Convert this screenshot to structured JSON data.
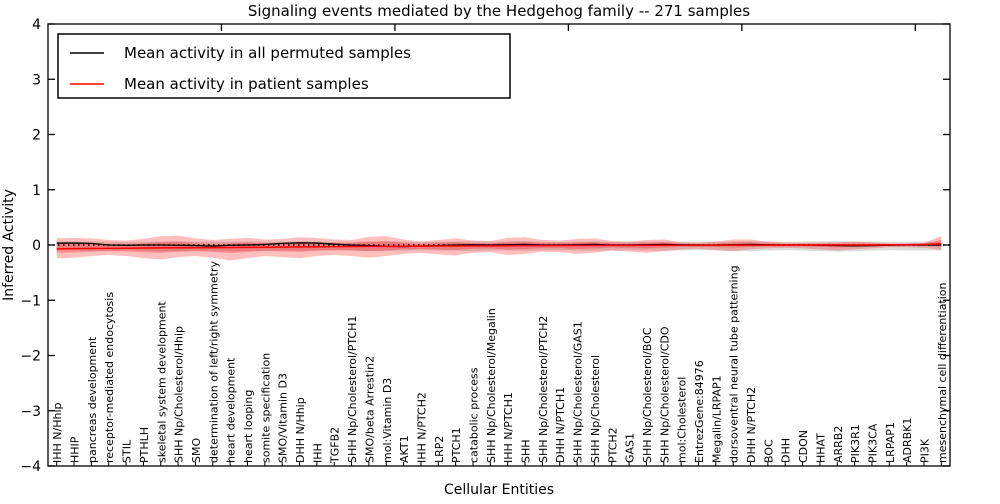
{
  "title": "Signaling events mediated by the Hedgehog family -- 271 samples",
  "xlabel": "Cellular Entities",
  "ylabel": "Inferred Activity",
  "legend": {
    "position": "upper left",
    "entries": [
      {
        "label": "Mean activity in all permuted samples",
        "color": "#000000"
      },
      {
        "label": "Mean activity in patient samples",
        "color": "#ff0000"
      }
    ]
  },
  "colors": {
    "permuted_line": "#000000",
    "patient_line": "#ff0000",
    "patient_band": "rgba(255,0,0,0.25)",
    "permuted_band": "rgba(128,128,128,0.28)",
    "zero_line": "#000000",
    "frame": "#000000",
    "background": "#ffffff"
  },
  "chart_data": {
    "type": "line",
    "title": "Signaling events mediated by the Hedgehog family -- 271 samples",
    "xlabel": "Cellular Entities",
    "ylabel": "Inferred Activity",
    "ylim": [
      -4,
      4
    ],
    "ytick_values": [
      4,
      3,
      2,
      1,
      0,
      -1,
      -2,
      -3,
      -4
    ],
    "ytick_labels": [
      "4",
      "3",
      "2",
      "1",
      "0",
      "−1",
      "−2",
      "−3",
      "−4"
    ],
    "grid": false,
    "legend_position": "upper left",
    "zero_line": {
      "style": "dotted",
      "color": "#000000",
      "y": 0
    },
    "categories": [
      "IHH N/Hhip",
      "HHIP",
      "pancreas development",
      "receptor-mediated endocytosis",
      "STIL",
      "PTHLH",
      "skeletal system development",
      "SHH Np/Cholesterol/Hhip",
      "SMO",
      "determination of left/right symmetry",
      "heart development",
      "heart looping",
      "somite specification",
      "SMO/Vitamin D3",
      "DHH N/Hhip",
      "IHH",
      "TGFB2",
      "SHH Np/Cholesterol/PTCH1",
      "SMO/beta Arrestin2",
      "mol:Vitamin D3",
      "AKT1",
      "IHH N/PTCH2",
      "LRP2",
      "PTCH1",
      "catabolic process",
      "SHH Np/Cholesterol/Megalin",
      "IHH N/PTCH1",
      "SHH",
      "SHH Np/Cholesterol/PTCH2",
      "DHH N/PTCH1",
      "SHH Np/Cholesterol/GAS1",
      "SHH Np/Cholesterol",
      "PTCH2",
      "GAS1",
      "SHH Np/Cholesterol/BOC",
      "SHH Np/Cholesterol/CDO",
      "mol:Cholesterol",
      "EntrezGene:84976",
      "Megalin/LRPAP1",
      "dorsoventral neural tube patterning",
      "DHH N/PTCH2",
      "BOC",
      "DHH",
      "CDON",
      "HHAT",
      "ARRB2",
      "PIK3R1",
      "PIK3CA",
      "LRPAP1",
      "ADRBK1",
      "PI3K",
      "mesenchymal cell differentiation"
    ],
    "series": [
      {
        "name": "Mean activity in all permuted samples",
        "color": "#000000",
        "values": [
          0.035,
          0.035,
          0.03,
          0.0,
          -0.005,
          0.0,
          0.0,
          -0.005,
          -0.01,
          -0.02,
          -0.005,
          0.0,
          0.01,
          0.03,
          0.04,
          0.035,
          0.015,
          0.0,
          -0.01,
          -0.025,
          -0.03,
          -0.02,
          -0.01,
          0.0,
          0.005,
          0.0,
          0.005,
          0.01,
          0.0,
          0.0,
          0.005,
          0.01,
          0.0,
          0.0,
          0.005,
          0.01,
          0.005,
          0.0,
          0.0,
          0.005,
          0.01,
          0.005,
          0.0,
          0.0,
          -0.005,
          -0.01,
          -0.015,
          -0.01,
          -0.005,
          0.0,
          0.0,
          0.0
        ]
      },
      {
        "name": "Mean activity in patient samples",
        "color": "#ff0000",
        "values": [
          -0.07,
          -0.065,
          -0.063,
          -0.06,
          -0.058,
          -0.055,
          -0.053,
          -0.05,
          -0.05,
          -0.048,
          -0.045,
          -0.043,
          -0.04,
          -0.038,
          -0.035,
          -0.033,
          -0.03,
          -0.028,
          -0.026,
          -0.024,
          -0.022,
          -0.02,
          -0.019,
          -0.018,
          -0.016,
          -0.015,
          -0.014,
          -0.012,
          -0.011,
          -0.01,
          -0.009,
          -0.008,
          -0.007,
          -0.006,
          -0.006,
          -0.005,
          -0.005,
          -0.004,
          -0.004,
          -0.003,
          -0.003,
          -0.002,
          -0.002,
          -0.001,
          -0.001,
          0.0,
          0.0,
          0.0,
          0.003,
          0.005,
          0.008,
          0.02
        ]
      }
    ],
    "bands": [
      {
        "name": "permuted samples range",
        "color": "rgba(128,128,128,0.28)",
        "upper": [
          0.06,
          0.06,
          0.065,
          0.06,
          0.055,
          0.06,
          0.06,
          0.065,
          0.06,
          0.06,
          0.06,
          0.065,
          0.06,
          0.06,
          0.065,
          0.06,
          0.055,
          0.06,
          0.06,
          0.065,
          0.06,
          0.055,
          0.06,
          0.06,
          0.065,
          0.06,
          0.06,
          0.065,
          0.06,
          0.055,
          0.06,
          0.065,
          0.06,
          0.055,
          0.06,
          0.065,
          0.06,
          0.055,
          0.06,
          0.065,
          0.07,
          0.06,
          0.055,
          0.06,
          0.065,
          0.07,
          0.065,
          0.06,
          0.055,
          0.06,
          0.06,
          0.06
        ],
        "lower": [
          -0.1,
          -0.1,
          -0.105,
          -0.1,
          -0.095,
          -0.1,
          -0.105,
          -0.11,
          -0.1,
          -0.1,
          -0.105,
          -0.11,
          -0.1,
          -0.1,
          -0.105,
          -0.1,
          -0.095,
          -0.1,
          -0.105,
          -0.11,
          -0.1,
          -0.095,
          -0.1,
          -0.105,
          -0.11,
          -0.1,
          -0.1,
          -0.105,
          -0.1,
          -0.095,
          -0.1,
          -0.105,
          -0.1,
          -0.095,
          -0.1,
          -0.105,
          -0.1,
          -0.095,
          -0.1,
          -0.11,
          -0.115,
          -0.1,
          -0.095,
          -0.1,
          -0.11,
          -0.12,
          -0.11,
          -0.1,
          -0.095,
          -0.1,
          -0.1,
          -0.1
        ]
      },
      {
        "name": "patient samples range",
        "color": "rgba(255,0,0,0.25)",
        "upper": [
          0.12,
          0.13,
          0.12,
          0.09,
          0.08,
          0.11,
          0.16,
          0.17,
          0.12,
          0.09,
          0.11,
          0.13,
          0.1,
          0.11,
          0.14,
          0.13,
          0.1,
          0.09,
          0.15,
          0.16,
          0.1,
          0.06,
          0.09,
          0.12,
          0.08,
          0.07,
          0.13,
          0.14,
          0.09,
          0.08,
          0.11,
          0.12,
          0.07,
          0.06,
          0.09,
          0.1,
          0.05,
          0.04,
          0.06,
          0.1,
          0.1,
          0.06,
          0.04,
          0.04,
          0.04,
          0.05,
          0.06,
          0.05,
          0.03,
          0.03,
          0.04,
          0.16
        ],
        "lower": [
          -0.24,
          -0.23,
          -0.2,
          -0.18,
          -0.2,
          -0.24,
          -0.26,
          -0.22,
          -0.2,
          -0.23,
          -0.28,
          -0.24,
          -0.2,
          -0.22,
          -0.24,
          -0.2,
          -0.18,
          -0.2,
          -0.23,
          -0.2,
          -0.16,
          -0.14,
          -0.17,
          -0.19,
          -0.14,
          -0.13,
          -0.18,
          -0.16,
          -0.12,
          -0.13,
          -0.16,
          -0.14,
          -0.1,
          -0.12,
          -0.14,
          -0.11,
          -0.08,
          -0.07,
          -0.09,
          -0.11,
          -0.08,
          -0.06,
          -0.05,
          -0.06,
          -0.08,
          -0.1,
          -0.08,
          -0.06,
          -0.04,
          -0.04,
          -0.05,
          -0.09
        ]
      }
    ]
  }
}
